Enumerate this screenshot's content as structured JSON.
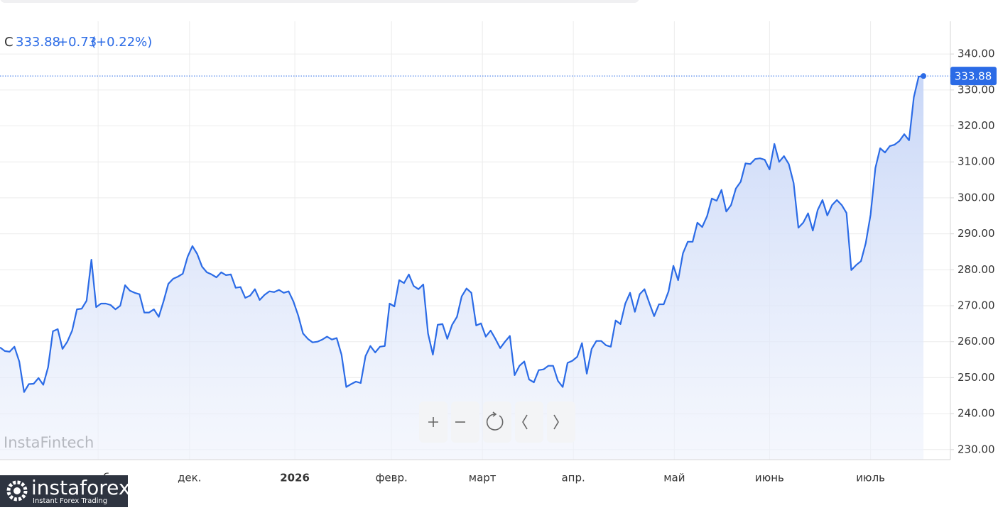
{
  "chart_data": {
    "type": "area",
    "legend": {
      "label": "C",
      "change": "+0.73",
      "change_pct": "(+0.22%)"
    },
    "watermark": "InstaFintech",
    "logo": {
      "name": "instaforex",
      "tagline": "Instant Forex Trading"
    },
    "color": "#2b6be6",
    "grid": true,
    "xlim": [
      0,
      197.6
    ],
    "xticks": [
      {
        "value": 20.4,
        "label": "нояб."
      },
      {
        "value": 39.4,
        "label": "дек."
      },
      {
        "value": 61.3,
        "label": "2026",
        "bold": true
      },
      {
        "value": 81.4,
        "label": "февр."
      },
      {
        "value": 100.3,
        "label": "март"
      },
      {
        "value": 119.2,
        "label": "апр."
      },
      {
        "value": 140.2,
        "label": "май"
      },
      {
        "value": 160,
        "label": "июнь"
      },
      {
        "value": 181,
        "label": "июль"
      }
    ],
    "ylim": [
      227.2,
      349.1
    ],
    "yticks": [
      {
        "value": 230,
        "label": "230.00"
      },
      {
        "value": 240,
        "label": "240.00"
      },
      {
        "value": 250,
        "label": "250.00"
      },
      {
        "value": 260,
        "label": "260.00"
      },
      {
        "value": 270,
        "label": "270.00"
      },
      {
        "value": 280,
        "label": "280.00"
      },
      {
        "value": 290,
        "label": "290.00"
      },
      {
        "value": 300,
        "label": "300.00"
      },
      {
        "value": 310,
        "label": "310.00"
      },
      {
        "value": 320,
        "label": "320.00"
      },
      {
        "value": 330,
        "label": "330.00"
      },
      {
        "value": 340,
        "label": "340.00"
      }
    ],
    "values": [
      258.4,
      257.4,
      257.2,
      258.6,
      254.5,
      246.0,
      248.2,
      248.3,
      249.9,
      248.0,
      252.9,
      262.9,
      263.5,
      258.0,
      260.0,
      263.1,
      269.0,
      269.2,
      271.4,
      282.8,
      269.6,
      270.6,
      270.6,
      270.2,
      269.0,
      270.0,
      275.7,
      274.2,
      273.6,
      273.2,
      268.1,
      268.1,
      269.0,
      266.9,
      271.2,
      276.1,
      277.5,
      278.1,
      278.9,
      283.6,
      286.6,
      284.4,
      280.9,
      279.3,
      278.7,
      277.9,
      279.3,
      278.5,
      278.7,
      275.0,
      275.2,
      272.2,
      272.8,
      274.6,
      271.6,
      273.0,
      274.0,
      273.8,
      274.4,
      273.6,
      274.0,
      271.2,
      267.3,
      262.3,
      260.8,
      259.8,
      260.0,
      260.6,
      261.4,
      260.6,
      261.0,
      256.4,
      247.4,
      248.2,
      248.9,
      248.5,
      256.0,
      258.8,
      257.0,
      258.6,
      258.8,
      270.6,
      269.8,
      277.1,
      276.3,
      278.7,
      275.5,
      274.6,
      275.9,
      262.3,
      256.4,
      264.7,
      264.9,
      260.8,
      264.7,
      266.9,
      272.6,
      274.8,
      273.6,
      264.5,
      265.1,
      261.4,
      263.1,
      260.8,
      258.2,
      260.0,
      261.6,
      250.7,
      253.3,
      254.5,
      249.5,
      248.7,
      252.1,
      252.3,
      253.3,
      253.3,
      249.1,
      247.4,
      254.1,
      254.7,
      255.8,
      259.6,
      251.1,
      258.0,
      260.2,
      260.2,
      259.0,
      258.6,
      265.9,
      264.9,
      270.6,
      273.6,
      268.3,
      273.2,
      274.6,
      270.8,
      267.1,
      270.4,
      270.4,
      274.0,
      281.1,
      277.1,
      284.6,
      287.8,
      287.8,
      293.1,
      291.9,
      294.9,
      299.8,
      299.2,
      302.2,
      296.2,
      298.0,
      302.6,
      304.5,
      309.6,
      309.4,
      310.8,
      311.0,
      310.6,
      307.9,
      315.0,
      310.0,
      311.6,
      309.4,
      304.1,
      291.7,
      293.1,
      295.7,
      290.9,
      296.6,
      299.4,
      295.1,
      298.0,
      299.4,
      298.0,
      295.8,
      279.9,
      281.3,
      282.4,
      287.4,
      295.3,
      308.3,
      313.8,
      312.6,
      314.4,
      314.8,
      315.8,
      317.7,
      316.0,
      328.0,
      333.7,
      333.88
    ]
  }
}
